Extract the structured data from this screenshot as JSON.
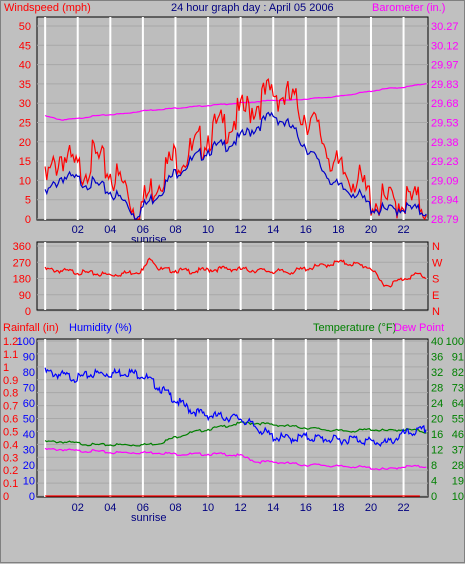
{
  "chart_data": [
    {
      "type": "line",
      "title": "24 hour graph day : April 05 2006",
      "ylabel": "Windspeed (mph)",
      "y2label": "Barometer (in.)",
      "ylim": [
        0,
        50
      ],
      "y2lim": [
        28.79,
        30.27
      ],
      "yticks": [
        "50",
        "45",
        "40",
        "35",
        "30",
        "25",
        "20",
        "15",
        "10",
        "5",
        "0"
      ],
      "y2ticks": [
        "30.27",
        "30.12",
        "29.97",
        "29.83",
        "29.68",
        "29.53",
        "29.38",
        "29.23",
        "29.09",
        "28.94",
        "28.79"
      ],
      "xticks": [
        "02",
        "04",
        "06",
        "08",
        "10",
        "12",
        "14",
        "16",
        "18",
        "20",
        "22"
      ],
      "annotation": "sunrise",
      "x_hours": [
        0,
        1,
        2,
        3,
        4,
        5,
        5.5,
        6,
        7,
        8,
        9,
        10,
        11,
        12,
        13,
        14,
        15,
        16,
        17,
        18,
        19,
        20,
        21,
        22,
        23,
        23.4
      ],
      "series": [
        {
          "color": "#ff0000",
          "values": [
            9,
            17,
            12,
            16,
            12,
            8,
            2,
            4,
            11,
            16,
            17,
            22,
            24,
            27,
            30,
            33,
            31,
            27,
            21,
            12,
            11,
            5,
            4,
            5,
            4,
            3
          ]
        },
        {
          "color": "#0000c8",
          "values": [
            6,
            11,
            10,
            9,
            7,
            4,
            1,
            3,
            7,
            12,
            15,
            18,
            19,
            21,
            24,
            27,
            24,
            19,
            13,
            8,
            7,
            3,
            2,
            3,
            2,
            2
          ]
        },
        {
          "color": "#ff00ff",
          "values": [
            29.58,
            29.55,
            29.56,
            29.58,
            29.59,
            29.6,
            29.61,
            29.62,
            29.63,
            29.64,
            29.65,
            29.66,
            29.67,
            29.68,
            29.69,
            29.7,
            29.7,
            29.71,
            29.72,
            29.73,
            29.75,
            29.77,
            29.79,
            29.8,
            29.82,
            29.83
          ]
        }
      ]
    },
    {
      "type": "line",
      "ylim": [
        0,
        360
      ],
      "yticks": [
        "360",
        "270",
        "180",
        "90",
        "0"
      ],
      "y2ticks": [
        "N",
        "W",
        "S",
        "E",
        "N"
      ],
      "x_hours": [
        0,
        2,
        4,
        5,
        6,
        6.5,
        7,
        9,
        11,
        13,
        15,
        16,
        17,
        18,
        19,
        20,
        20.5,
        21,
        22,
        23,
        23.4
      ],
      "series": [
        {
          "color": "#ff0000",
          "values": [
            230,
            215,
            200,
            210,
            225,
            300,
            230,
            220,
            235,
            225,
            215,
            235,
            250,
            270,
            260,
            240,
            170,
            140,
            180,
            205,
            180
          ]
        }
      ]
    },
    {
      "type": "line",
      "y1label": "Rainfall (in)",
      "y2label": "Humidity (%)",
      "y3label": "Temperature (°F)",
      "y4label": "Dew Point",
      "y1ticks": [
        "1.2",
        "1.1",
        "1",
        "0.9",
        "0.8",
        "0.7",
        "0.6",
        "0.5",
        "0.4",
        "0.3",
        "0.2",
        "0.1",
        "0"
      ],
      "y2ticks": [
        "100",
        "90",
        "80",
        "70",
        "60",
        "50",
        "40",
        "30",
        "20",
        "10",
        "0"
      ],
      "y3ticks": [
        "40",
        "36",
        "32",
        "28",
        "24",
        "20",
        "16",
        "12",
        "8",
        "4",
        "0"
      ],
      "y4ticks": [
        "100",
        "91",
        "82",
        "73",
        "64",
        "55",
        "46",
        "37",
        "28",
        "19",
        "10"
      ],
      "xticks": [
        "02",
        "04",
        "06",
        "08",
        "10",
        "12",
        "14",
        "16",
        "18",
        "20",
        "22"
      ],
      "annotation": "sunrise",
      "x_hours": [
        0,
        1,
        2,
        3,
        4,
        5,
        6,
        7,
        8,
        9,
        10,
        11,
        12,
        13,
        14,
        15,
        16,
        17,
        18,
        19,
        20,
        21,
        22,
        23,
        23.4
      ],
      "series": [
        {
          "color": "#0000ff",
          "values": [
            80,
            78,
            76,
            79,
            79,
            80,
            78,
            70,
            62,
            55,
            52,
            51,
            50,
            44,
            38,
            37,
            38,
            37,
            36,
            37,
            35,
            34,
            40,
            42,
            43
          ]
        },
        {
          "color": "#008000",
          "values": [
            35,
            35,
            34,
            33,
            33,
            33,
            33,
            34,
            38,
            41,
            43,
            45,
            47,
            47,
            46,
            45,
            44,
            43,
            42,
            42,
            43,
            42,
            43,
            42,
            41
          ]
        },
        {
          "color": "#ff00ff",
          "values": [
            30,
            30,
            29,
            29,
            28,
            28,
            28,
            28,
            27,
            27,
            27,
            27,
            26,
            22,
            22,
            21,
            20,
            20,
            19,
            19,
            18,
            17,
            19,
            19,
            19
          ]
        },
        {
          "color": "#ff0000",
          "values": [
            0,
            0,
            0,
            0,
            0,
            0,
            0,
            0,
            0,
            0,
            0,
            0,
            0,
            0,
            0,
            0,
            0,
            0,
            0,
            0,
            0,
            0,
            0,
            0,
            0
          ]
        }
      ]
    }
  ]
}
